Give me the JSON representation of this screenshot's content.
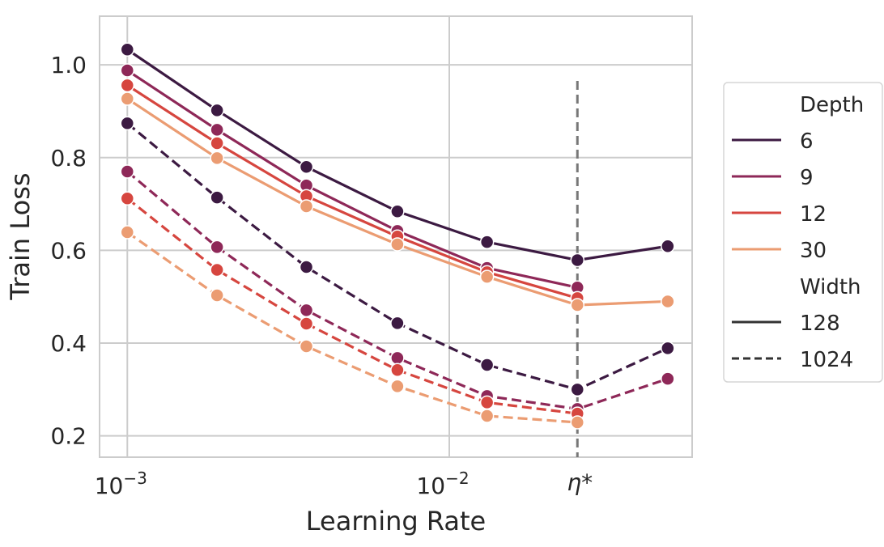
{
  "chart_data": {
    "type": "line",
    "title": "",
    "xlabel": "Learning Rate",
    "ylabel": "Train Loss",
    "xscale": "log",
    "xlim": [
      0.00082,
      0.0568
    ],
    "ylim": [
      0.154,
      1.105
    ],
    "grid": true,
    "x_ticks": [
      {
        "value": 0.001,
        "label": "10",
        "exp": "−3"
      },
      {
        "value": 0.01,
        "label": "10",
        "exp": "−2"
      }
    ],
    "y_ticks": [
      0.2,
      0.4,
      0.6,
      0.8,
      1.0
    ],
    "y_tick_labels": [
      "0.2",
      "0.4",
      "0.6",
      "0.8",
      "1.0"
    ],
    "annotation": {
      "label": "η*",
      "x": 0.025,
      "style": "dashed vertical line",
      "color": "#777777"
    },
    "legend": {
      "placement": "right outside",
      "hue_title": "Depth",
      "style_title": "Width",
      "hue_entries": [
        {
          "label": "6",
          "color": "#3c1a42"
        },
        {
          "label": "9",
          "color": "#8e2858"
        },
        {
          "label": "12",
          "color": "#d6463f"
        },
        {
          "label": "30",
          "color": "#eb9c72"
        }
      ],
      "style_entries": [
        {
          "label": "128",
          "dash": "solid"
        },
        {
          "label": "1024",
          "dash": "dashed"
        }
      ]
    },
    "x": [
      0.001,
      0.0019,
      0.0036,
      0.0069,
      0.0131,
      0.025,
      0.0477
    ],
    "series": [
      {
        "depth": "6",
        "width": "128",
        "color": "#3c1a42",
        "dash": "solid",
        "values": [
          1.033,
          0.902,
          0.78,
          0.684,
          0.618,
          0.579,
          0.609
        ]
      },
      {
        "depth": "9",
        "width": "128",
        "color": "#8e2858",
        "dash": "solid",
        "values": [
          0.988,
          0.86,
          0.74,
          0.642,
          0.562,
          0.52,
          null
        ]
      },
      {
        "depth": "12",
        "width": "128",
        "color": "#d6463f",
        "dash": "solid",
        "values": [
          0.956,
          0.831,
          0.717,
          0.63,
          0.553,
          0.497,
          null
        ]
      },
      {
        "depth": "30",
        "width": "128",
        "color": "#eb9c72",
        "dash": "solid",
        "values": [
          0.927,
          0.799,
          0.695,
          0.613,
          0.543,
          0.482,
          0.49
        ]
      },
      {
        "depth": "6",
        "width": "1024",
        "color": "#3c1a42",
        "dash": "dashed",
        "values": [
          0.874,
          0.714,
          0.564,
          0.443,
          0.353,
          0.3,
          0.389
        ]
      },
      {
        "depth": "9",
        "width": "1024",
        "color": "#8e2858",
        "dash": "dashed",
        "values": [
          0.77,
          0.607,
          0.471,
          0.368,
          0.286,
          0.258,
          0.323
        ]
      },
      {
        "depth": "12",
        "width": "1024",
        "color": "#d6463f",
        "dash": "dashed",
        "values": [
          0.712,
          0.558,
          0.442,
          0.342,
          0.272,
          0.248,
          null
        ]
      },
      {
        "depth": "30",
        "width": "1024",
        "color": "#eb9c72",
        "dash": "dashed",
        "values": [
          0.639,
          0.503,
          0.393,
          0.307,
          0.243,
          0.229,
          null
        ]
      }
    ]
  }
}
